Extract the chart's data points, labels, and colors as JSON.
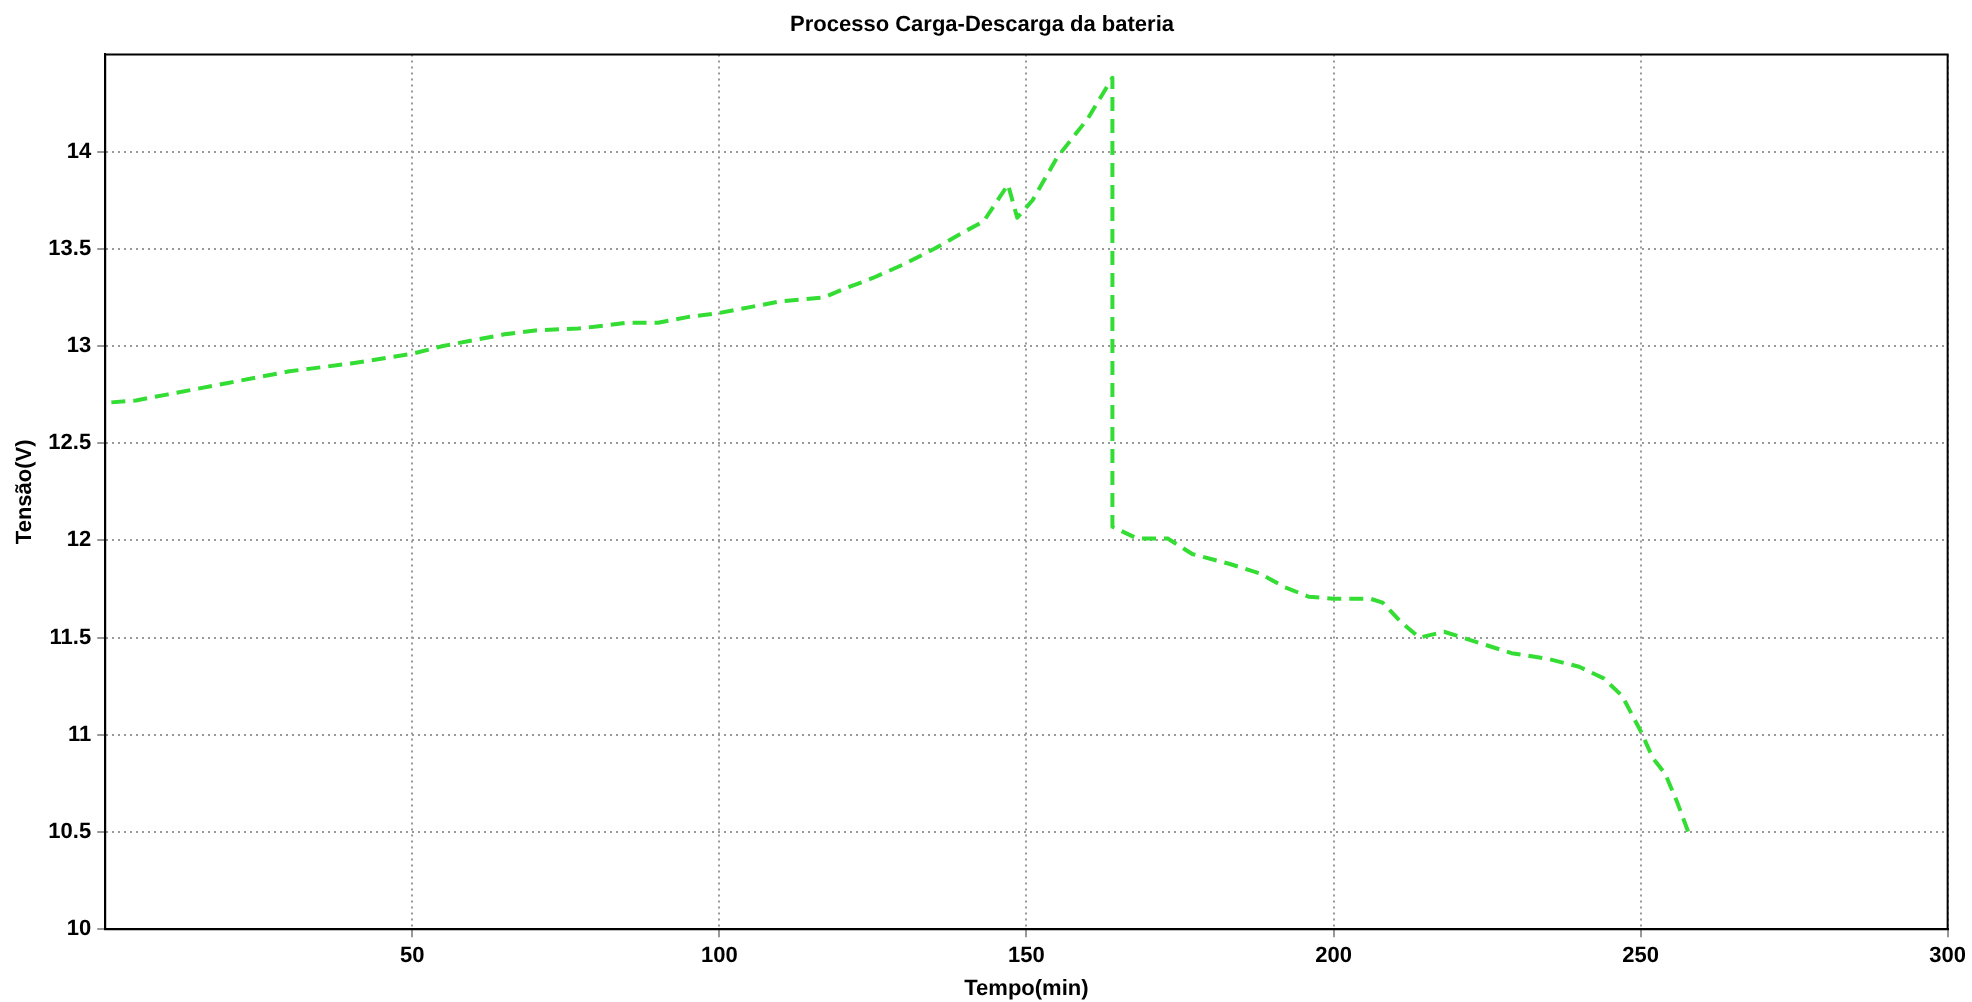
{
  "chart_data": {
    "type": "line",
    "title": "Processo Carga-Descarga da bateria",
    "xlabel": "Tempo(min)",
    "ylabel": "Tensão(V)",
    "x": [
      1,
      5,
      10,
      20,
      30,
      40,
      50,
      55,
      60,
      65,
      70,
      77,
      80,
      85,
      90,
      95,
      100,
      105,
      110,
      117,
      120,
      125,
      130,
      135,
      140,
      143,
      147,
      148.5,
      151,
      155,
      160,
      164,
      164,
      168,
      173,
      177,
      183,
      188,
      192,
      196,
      200,
      206,
      208,
      211,
      214,
      218,
      224,
      229,
      235,
      240,
      244,
      247,
      250,
      252,
      254,
      256,
      258
    ],
    "series": [
      {
        "color": "#33dd33",
        "values": [
          12.71,
          12.72,
          12.75,
          12.81,
          12.87,
          12.91,
          12.96,
          13.0,
          13.03,
          13.06,
          13.08,
          13.09,
          13.1,
          13.12,
          13.12,
          13.15,
          13.17,
          13.2,
          13.23,
          13.25,
          13.29,
          13.35,
          13.42,
          13.5,
          13.59,
          13.64,
          13.83,
          13.66,
          13.75,
          13.97,
          14.17,
          14.38,
          12.07,
          12.01,
          12.01,
          11.93,
          11.88,
          11.83,
          11.76,
          11.71,
          11.7,
          11.7,
          11.68,
          11.58,
          11.5,
          11.53,
          11.47,
          11.42,
          11.39,
          11.35,
          11.29,
          11.2,
          11.02,
          10.88,
          10.8,
          10.65,
          10.48
        ]
      }
    ],
    "xlim": [
      0,
      300
    ],
    "xticks": [
      50,
      100,
      150,
      200,
      250,
      300
    ],
    "ylim": [
      10,
      14.5
    ],
    "yticks": [
      10,
      10.5,
      11,
      11.5,
      12,
      12.5,
      13,
      13.5,
      14
    ],
    "grid": true,
    "line_style": "dashed",
    "marker": "none"
  }
}
